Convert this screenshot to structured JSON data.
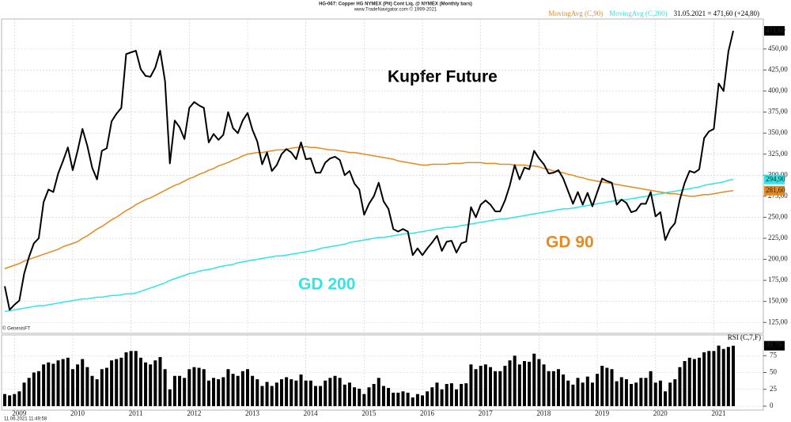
{
  "header": {
    "title": "HG-067: Copper HG NYMEX (Pit) Cont Liq. @ NYMEX  (Monthly bars)",
    "subtitle": "www.TradeNavigator.com © 1999-2021",
    "source": "© GenesisFT",
    "timestamp": "11.06.2021 11:49:58"
  },
  "chart_data": {
    "type": "line",
    "title": "Kupfer Future",
    "status": "31.05.2021 = 471,60 (+24,80)",
    "annotations": [
      {
        "text": "GD 90",
        "color": "#e48a1f"
      },
      {
        "text": "GD 200",
        "color": "#2ee6e6"
      }
    ],
    "grid": true,
    "categories": [
      null,
      null,
      "2009",
      null,
      null,
      null,
      null,
      null,
      null,
      null,
      null,
      null,
      null,
      null,
      "2010",
      null,
      null,
      null,
      null,
      null,
      null,
      null,
      null,
      null,
      null,
      null,
      "2011",
      null,
      null,
      null,
      null,
      null,
      null,
      null,
      null,
      null,
      null,
      null,
      "2012",
      null,
      null,
      null,
      null,
      null,
      null,
      null,
      null,
      null,
      null,
      null,
      "2013",
      null,
      null,
      null,
      null,
      null,
      null,
      null,
      null,
      null,
      null,
      null,
      "2014",
      null,
      null,
      null,
      null,
      null,
      null,
      null,
      null,
      null,
      null,
      null,
      "2015",
      null,
      null,
      null,
      null,
      null,
      null,
      null,
      null,
      null,
      null,
      null,
      "2016",
      null,
      null,
      null,
      null,
      null,
      null,
      null,
      null,
      null,
      null,
      null,
      "2017",
      null,
      null,
      null,
      null,
      null,
      null,
      null,
      null,
      null,
      null,
      null,
      "2018",
      null,
      null,
      null,
      null,
      null,
      null,
      null,
      null,
      null,
      null,
      null,
      "2019",
      null,
      null,
      null,
      null,
      null,
      null,
      null,
      null,
      null,
      null,
      null,
      "2020",
      null,
      null,
      null,
      null,
      null,
      null,
      null,
      null,
      null,
      null,
      null,
      "2021",
      null,
      null,
      null,
      null
    ],
    "ylim": [
      113,
      480
    ],
    "yticks": [
      {
        "value": 125,
        "label": "125,00"
      },
      {
        "value": 150,
        "label": "150,00"
      },
      {
        "value": 175,
        "label": "175,00"
      },
      {
        "value": 200,
        "label": "200,00"
      },
      {
        "value": 225,
        "label": "225,00"
      },
      {
        "value": 250,
        "label": "250,00"
      },
      {
        "value": 275,
        "label": "275,00"
      },
      {
        "value": 300,
        "label": "300,00"
      },
      {
        "value": 325,
        "label": "325,00"
      },
      {
        "value": 350,
        "label": "350,00"
      },
      {
        "value": 375,
        "label": "375,00"
      },
      {
        "value": 400,
        "label": "400,00"
      },
      {
        "value": 425,
        "label": "425,00"
      },
      {
        "value": 450,
        "label": "450,00"
      }
    ],
    "series": [
      {
        "color": "#000000",
        "width": 2,
        "label_text": "#ffffff",
        "values": [
          168,
          140,
          146,
          151,
          183,
          203,
          219,
          225,
          268,
          283,
          280,
          302,
          317,
          333,
          306,
          329,
          355,
          335,
          309,
          295,
          329,
          332,
          364,
          373,
          380,
          444,
          446,
          448,
          426,
          418,
          417,
          428,
          448,
          412,
          314,
          365,
          357,
          343,
          380,
          387,
          383,
          380,
          339,
          349,
          342,
          348,
          375,
          356,
          350,
          365,
          374,
          354,
          340,
          313,
          327,
          305,
          312,
          325,
          331,
          327,
          319,
          339,
          319,
          320,
          303,
          303,
          315,
          320,
          322,
          318,
          300,
          305,
          290,
          283,
          253,
          266,
          275,
          291,
          269,
          260,
          236,
          233,
          236,
          233,
          205,
          213,
          205,
          213,
          220,
          228,
          210,
          221,
          222,
          208,
          219,
          221,
          262,
          250,
          265,
          270,
          265,
          257,
          257,
          270,
          288,
          312,
          295,
          309,
          307,
          329,
          320,
          313,
          302,
          303,
          306,
          296,
          281,
          266,
          280,
          265,
          279,
          263,
          280,
          296,
          293,
          291,
          265,
          271,
          267,
          256,
          258,
          266,
          266,
          280,
          251,
          256,
          223,
          236,
          243,
          271,
          291,
          305,
          303,
          307,
          344,
          352,
          355,
          409,
          400,
          447,
          471.6
        ],
        "value_labels": {
          "150": "471,60"
        }
      },
      {
        "name": "MovingAvg (C,90)",
        "color": "#e48a1f",
        "width": 1.5,
        "label_text": "#000000",
        "values": [
          189,
          191,
          193,
          195,
          198,
          200,
          202,
          204,
          206,
          208,
          210,
          212,
          215,
          217,
          219,
          221,
          225,
          228,
          232,
          236,
          239,
          243,
          247,
          250,
          254,
          258,
          261,
          265,
          268,
          271,
          273,
          276,
          279,
          282,
          285,
          288,
          290,
          293,
          296,
          298,
          301,
          303,
          306,
          308,
          311,
          313,
          315,
          318,
          320,
          323,
          325,
          326,
          327,
          327,
          328,
          329,
          330,
          330,
          331,
          332,
          333,
          333,
          334,
          333,
          333,
          332,
          331,
          330,
          330,
          329,
          328,
          327,
          327,
          326,
          325,
          324,
          323,
          322,
          321,
          320,
          319,
          317,
          316,
          315,
          314,
          313,
          312,
          312,
          313,
          313,
          313,
          313,
          314,
          314,
          314,
          315,
          315,
          315,
          315,
          314,
          314,
          314,
          313,
          313,
          313,
          312,
          312,
          312,
          311,
          311,
          310,
          308,
          307,
          305,
          304,
          303,
          301,
          300,
          298,
          297,
          295,
          294,
          293,
          292,
          291,
          290,
          289,
          288,
          287,
          286,
          285,
          284,
          283,
          282,
          281,
          280,
          279,
          278,
          278,
          277,
          276,
          275,
          275,
          276,
          277,
          277,
          278,
          279,
          280,
          281,
          281.6
        ],
        "value_labels": {
          "150": "281,60"
        }
      },
      {
        "name": "MovingAvg (C,200)",
        "color": "#2ee6e6",
        "width": 1.5,
        "label_text": "#000000",
        "values": [
          138,
          139,
          140,
          141,
          142,
          143,
          144,
          145,
          145,
          146,
          147,
          148,
          149,
          150,
          151,
          152,
          153,
          153,
          154,
          155,
          155,
          156,
          157,
          157,
          158,
          159,
          159,
          160,
          162,
          164,
          166,
          168,
          170,
          172,
          175,
          177,
          179,
          181,
          183,
          184,
          186,
          187,
          188,
          189,
          191,
          192,
          193,
          194,
          196,
          197,
          198,
          199,
          200,
          201,
          202,
          203,
          204,
          204,
          205,
          206,
          207,
          208,
          209,
          210,
          211,
          213,
          214,
          215,
          216,
          217,
          218,
          220,
          221,
          222,
          223,
          224,
          225,
          226,
          226,
          227,
          228,
          229,
          230,
          231,
          231,
          232,
          233,
          234,
          235,
          236,
          237,
          238,
          238,
          239,
          240,
          241,
          242,
          243,
          244,
          245,
          246,
          247,
          248,
          248,
          249,
          250,
          251,
          252,
          253,
          254,
          255,
          256,
          257,
          258,
          259,
          260,
          260,
          261,
          262,
          263,
          264,
          265,
          266,
          267,
          268,
          269,
          270,
          271,
          271,
          272,
          273,
          274,
          275,
          276,
          277,
          278,
          279,
          280,
          281,
          282,
          283,
          284,
          285,
          286,
          288,
          289,
          290,
          291,
          292,
          294,
          294.9
        ],
        "value_labels": {
          "150": "294,90"
        }
      }
    ],
    "rsi": {
      "type": "bar",
      "name": "RSI (C,7,F)",
      "color": "#000000",
      "ylim": [
        0,
        100
      ],
      "yticks": [
        0,
        25,
        50,
        75
      ],
      "values": [
        18,
        16,
        18,
        22,
        35,
        42,
        50,
        52,
        62,
        65,
        63,
        68,
        70,
        72,
        55,
        62,
        70,
        58,
        45,
        40,
        55,
        57,
        68,
        70,
        72,
        80,
        82,
        82,
        72,
        65,
        62,
        68,
        73,
        55,
        25,
        45,
        45,
        42,
        55,
        58,
        57,
        55,
        38,
        42,
        40,
        43,
        55,
        48,
        45,
        52,
        55,
        45,
        40,
        30,
        36,
        30,
        35,
        40,
        43,
        40,
        38,
        47,
        38,
        38,
        30,
        30,
        38,
        42,
        45,
        42,
        32,
        35,
        28,
        26,
        18,
        28,
        33,
        42,
        30,
        27,
        20,
        20,
        22,
        20,
        13,
        18,
        16,
        22,
        28,
        35,
        25,
        33,
        34,
        25,
        33,
        34,
        62,
        55,
        60,
        62,
        58,
        52,
        52,
        60,
        68,
        75,
        62,
        67,
        66,
        78,
        70,
        62,
        52,
        52,
        55,
        47,
        38,
        32,
        42,
        35,
        44,
        35,
        48,
        60,
        57,
        55,
        37,
        43,
        40,
        33,
        35,
        42,
        42,
        52,
        35,
        38,
        22,
        35,
        40,
        58,
        67,
        72,
        70,
        72,
        80,
        82,
        82,
        90,
        85,
        88,
        89.79
      ],
      "value_labels": {
        "150": "89,79"
      }
    }
  }
}
